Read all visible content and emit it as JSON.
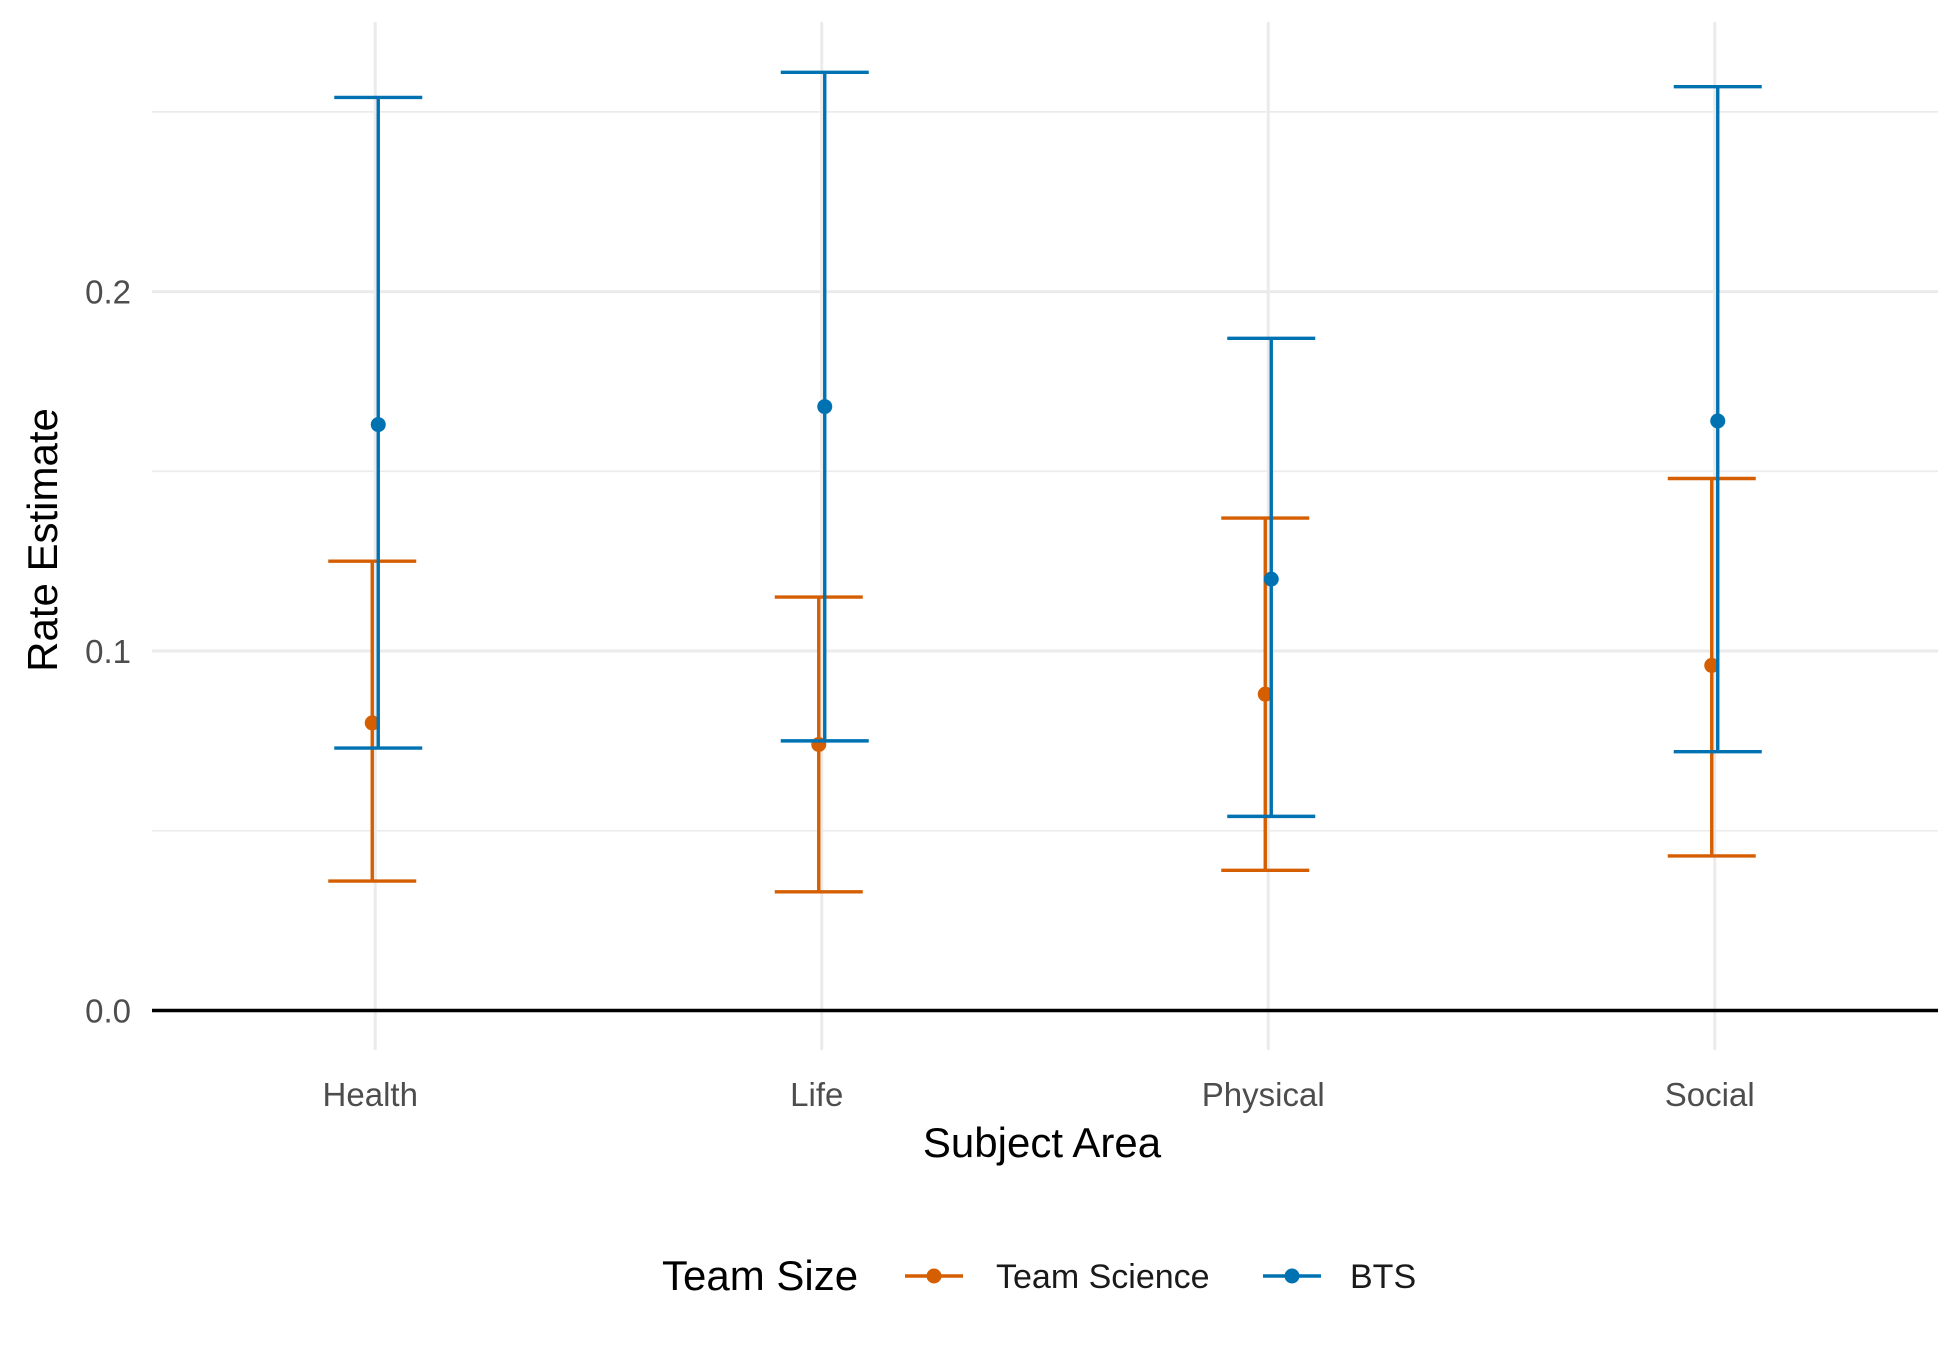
{
  "chart_data": {
    "type": "errorbar",
    "title": "",
    "xlabel": "Subject Area",
    "ylabel": "Rate Estimate",
    "categories": [
      "Health",
      "Life",
      "Physical",
      "Social"
    ],
    "ylim": [
      -0.011,
      0.275
    ],
    "yticks": [
      0.0,
      0.1,
      0.2
    ],
    "ytick_labels": [
      "0.0",
      "0.1",
      "0.2"
    ],
    "hline": 0,
    "grid": true,
    "legend": {
      "title": "Team Size",
      "position": "bottom"
    },
    "series": [
      {
        "name": "Team Science",
        "color": "#D55E00",
        "estimate": [
          0.08,
          0.074,
          0.088,
          0.096
        ],
        "lower": [
          0.036,
          0.033,
          0.039,
          0.043
        ],
        "upper": [
          0.125,
          0.115,
          0.137,
          0.148
        ]
      },
      {
        "name": "BTS",
        "color": "#0072B2",
        "estimate": [
          0.163,
          0.168,
          0.12,
          0.164
        ],
        "lower": [
          0.073,
          0.075,
          0.054,
          0.072
        ],
        "upper": [
          0.254,
          0.261,
          0.187,
          0.257
        ]
      }
    ]
  }
}
